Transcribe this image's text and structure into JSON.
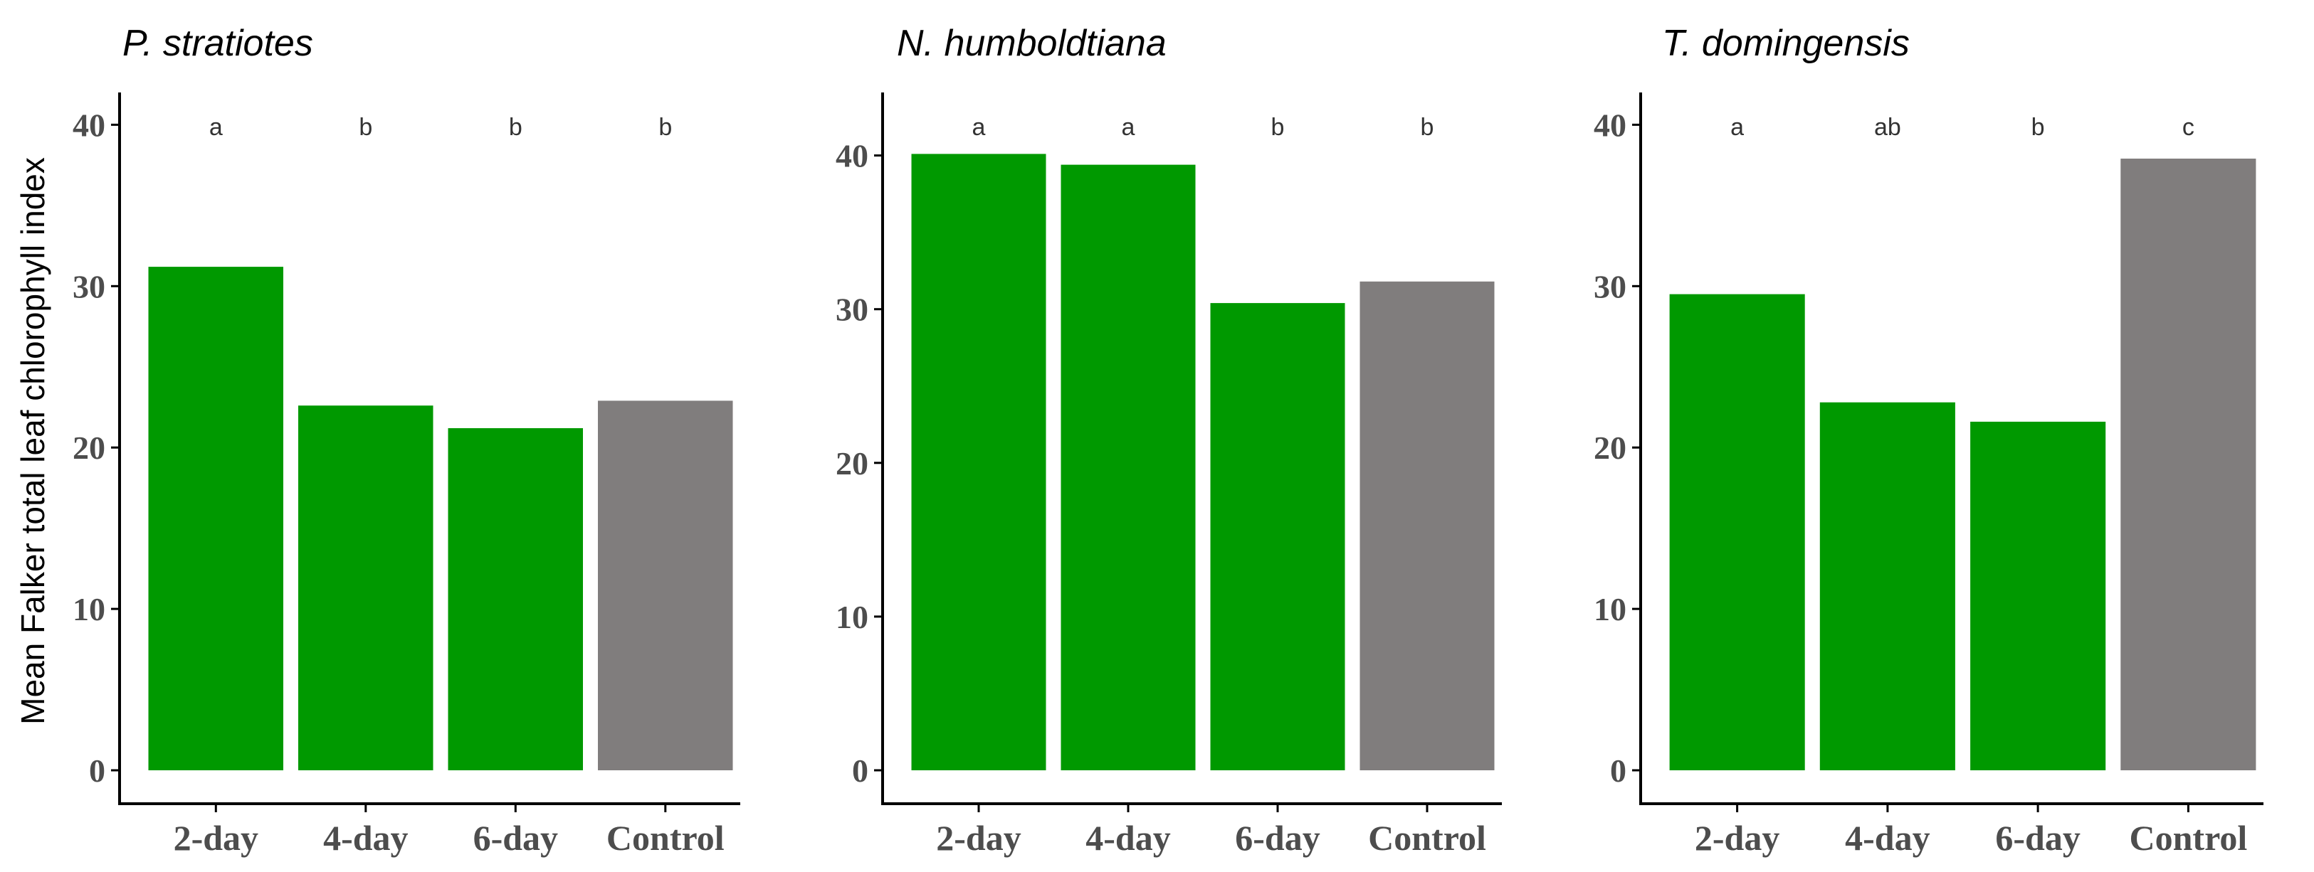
{
  "figure": {
    "y_axis_label": "Mean Falker total leaf chlorophyll index"
  },
  "colors": {
    "treatment": "#009900",
    "control": "#807d7d"
  },
  "chart_data": [
    {
      "type": "bar",
      "title": "P. stratiotes",
      "categories": [
        "2-day",
        "4-day",
        "6-day",
        "Control"
      ],
      "values": [
        31.2,
        22.6,
        21.2,
        22.9
      ],
      "significance_letters": [
        "a",
        "b",
        "b",
        "b"
      ],
      "ylabel": "Mean Falker total leaf chlorophyll index",
      "xlabel": "",
      "ylim": [
        0,
        42
      ],
      "yticks": [
        0,
        10,
        20,
        30,
        40
      ],
      "grid": false
    },
    {
      "type": "bar",
      "title": "N. humboldtiana",
      "categories": [
        "2-day",
        "4-day",
        "6-day",
        "Control"
      ],
      "values": [
        40.1,
        39.4,
        30.4,
        31.8
      ],
      "significance_letters": [
        "a",
        "a",
        "b",
        "b"
      ],
      "ylabel": "",
      "xlabel": "",
      "ylim": [
        0,
        44.1
      ],
      "yticks": [
        0,
        10,
        20,
        30,
        40
      ],
      "grid": false
    },
    {
      "type": "bar",
      "title": "T. domingensis",
      "categories": [
        "2-day",
        "4-day",
        "6-day",
        "Control"
      ],
      "values": [
        29.5,
        22.8,
        21.6,
        37.9
      ],
      "significance_letters": [
        "a",
        "ab",
        "b",
        "c"
      ],
      "ylabel": "",
      "xlabel": "",
      "ylim": [
        0,
        42
      ],
      "yticks": [
        0,
        10,
        20,
        30,
        40
      ],
      "grid": false
    }
  ]
}
